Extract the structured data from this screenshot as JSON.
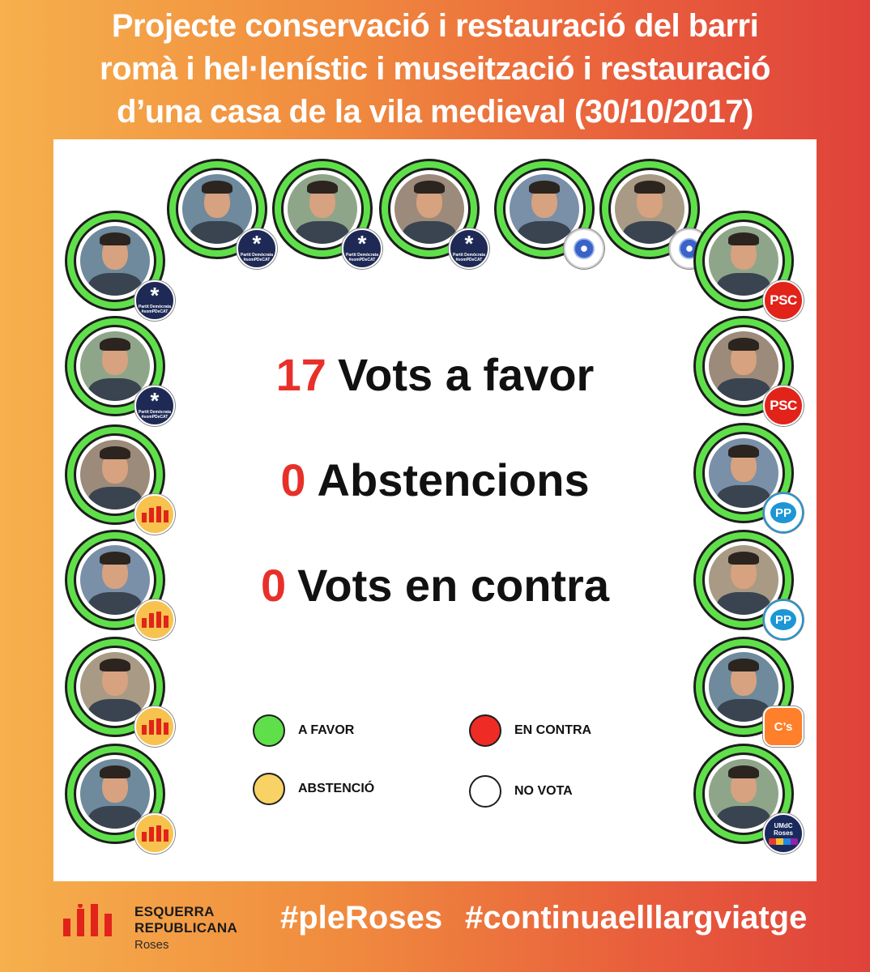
{
  "title": {
    "line1": "Projecte conservació i restauració del barri",
    "line2": "romà i hel·lenístic i museització i restauració",
    "line3": "d’una casa de la vila medieval (30/10/2017)"
  },
  "results": {
    "favor": {
      "count": "17",
      "label": "Vots a favor"
    },
    "abstention": {
      "count": "0",
      "label": "Abstencions"
    },
    "against": {
      "count": "0",
      "label": "Vots en contra"
    }
  },
  "legend": {
    "favor": {
      "label": "A FAVOR",
      "color": "#5fe04a"
    },
    "against": {
      "label": "EN CONTRA",
      "color": "#ee2b24"
    },
    "abstention": {
      "label": "ABSTENCIÓ",
      "color": "#f9d266"
    },
    "no_vote": {
      "label": "NO VOTA",
      "color": "#ffffff"
    }
  },
  "members": [
    {
      "vote": "favor",
      "party": "pdecat",
      "badge_text": "Partit Demòcrata",
      "badge_sub": "#somPDeCAT"
    },
    {
      "vote": "favor",
      "party": "pdecat",
      "badge_text": "Partit Demòcrata",
      "badge_sub": "#somPDeCAT"
    },
    {
      "vote": "favor",
      "party": "pdecat",
      "badge_text": "Partit Demòcrata",
      "badge_sub": "#somPDeCAT"
    },
    {
      "vote": "favor",
      "party": "local"
    },
    {
      "vote": "favor",
      "party": "local"
    },
    {
      "vote": "favor",
      "party": "pdecat",
      "badge_text": "Partit Demòcrata",
      "badge_sub": "#somPDeCAT"
    },
    {
      "vote": "favor",
      "party": "pdecat",
      "badge_text": "Partit Demòcrata",
      "badge_sub": "#somPDeCAT"
    },
    {
      "vote": "favor",
      "party": "erc"
    },
    {
      "vote": "favor",
      "party": "erc"
    },
    {
      "vote": "favor",
      "party": "erc"
    },
    {
      "vote": "favor",
      "party": "erc"
    },
    {
      "vote": "favor",
      "party": "psc",
      "badge_text": "PSC"
    },
    {
      "vote": "favor",
      "party": "psc",
      "badge_text": "PSC"
    },
    {
      "vote": "favor",
      "party": "pp",
      "badge_text": "PP"
    },
    {
      "vote": "favor",
      "party": "pp",
      "badge_text": "PP"
    },
    {
      "vote": "favor",
      "party": "cs",
      "badge_text": "C’s"
    },
    {
      "vote": "favor",
      "party": "umdc",
      "badge_text": "UMdC",
      "badge_sub": "Roses"
    }
  ],
  "footer": {
    "logo_line1": "ESQUERRA",
    "logo_line2": "REPUBLICANA",
    "logo_sub": "Roses",
    "logo_color": "#e2231a",
    "hashtag1": "#pleRoses",
    "hashtag2": "#continuaelllargviatge"
  }
}
